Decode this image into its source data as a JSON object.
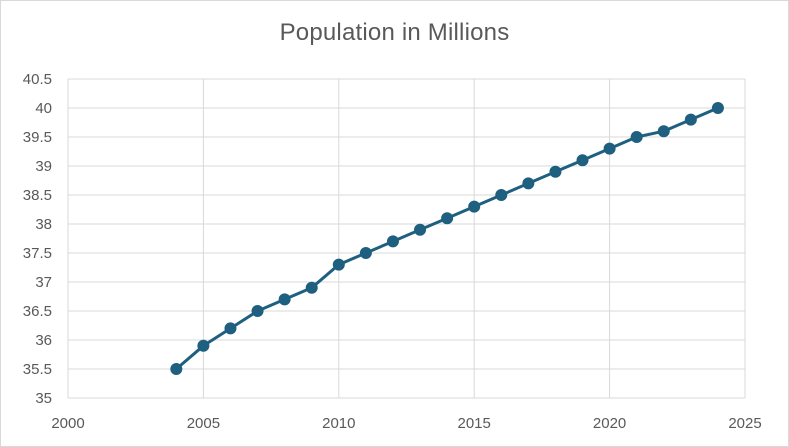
{
  "chart_data": {
    "type": "line",
    "title": "Population in Millions",
    "xlabel": "",
    "ylabel": "",
    "xlim": [
      2000,
      2025
    ],
    "ylim": [
      35,
      40.5
    ],
    "x_ticks": [
      "2000",
      "2005",
      "2010",
      "2015",
      "2020",
      "2025"
    ],
    "y_ticks": [
      "35",
      "35.5",
      "36",
      "36.5",
      "37",
      "37.5",
      "38",
      "38.5",
      "39",
      "39.5",
      "40",
      "40.5"
    ],
    "grid": true,
    "legend": "none",
    "colors": {
      "series": "#1f5f7f",
      "grid": "#d9d9d9",
      "text": "#595959"
    },
    "series": [
      {
        "x": [
          2004,
          2005,
          2006,
          2007,
          2008,
          2009,
          2010,
          2011,
          2012,
          2013,
          2014,
          2015,
          2016,
          2017,
          2018,
          2019,
          2020,
          2021,
          2022,
          2023,
          2024
        ],
        "y": [
          35.5,
          35.9,
          36.2,
          36.5,
          36.7,
          36.9,
          37.3,
          37.5,
          37.7,
          37.9,
          38.1,
          38.3,
          38.5,
          38.7,
          38.9,
          39.1,
          39.3,
          39.5,
          39.6,
          39.8,
          40.0
        ]
      }
    ]
  }
}
